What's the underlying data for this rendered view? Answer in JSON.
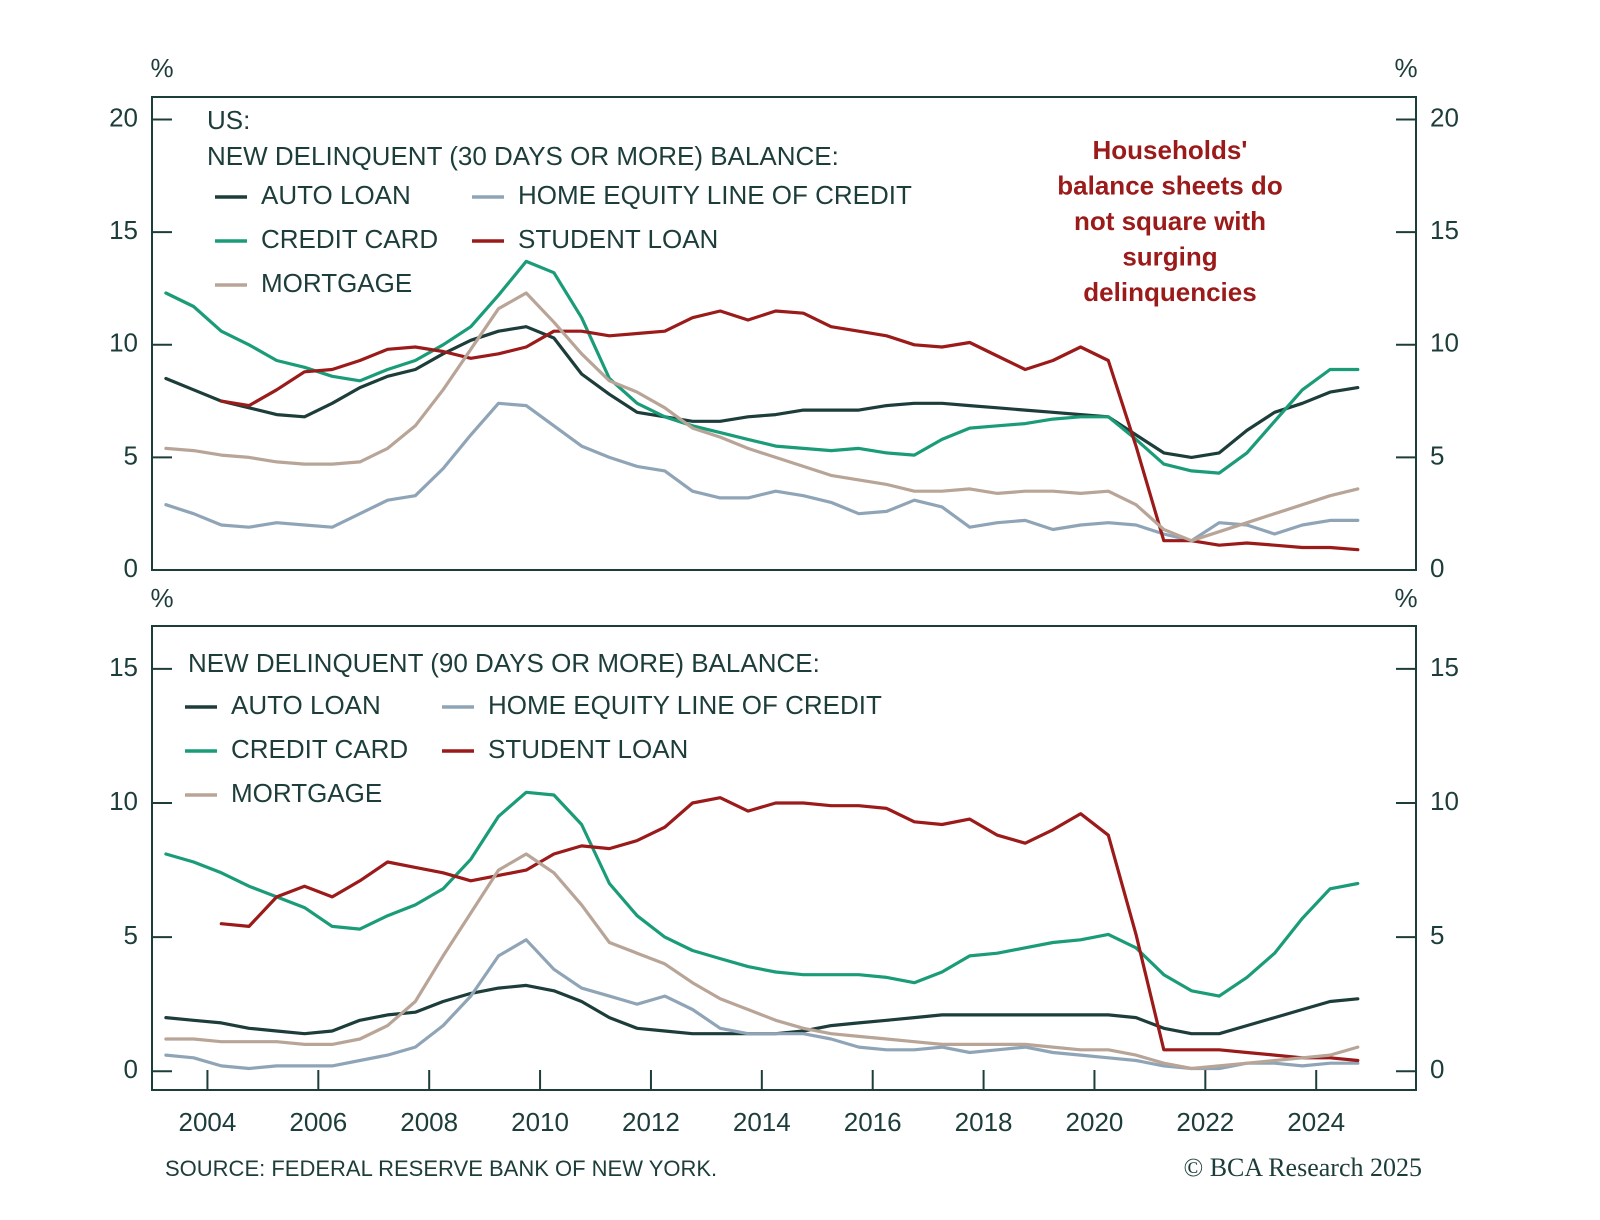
{
  "chart_data": [
    {
      "type": "line",
      "title": "US:",
      "subtitle": "NEW DELINQUENT (30 DAYS OR MORE) BALANCE:",
      "y_label": "%",
      "y2_label": "%",
      "annotation": [
        "Households'",
        "balance sheets do",
        "not square with",
        "surging",
        "delinquencies"
      ],
      "xlim": [
        2003,
        2025.8
      ],
      "ylim": [
        0,
        21
      ],
      "yticks": [
        0,
        5,
        10,
        15,
        20
      ],
      "y2lim": [
        0,
        21
      ],
      "y2ticks": [
        0,
        5,
        10,
        15,
        20
      ],
      "x": [
        2003.25,
        2003.75,
        2004.25,
        2004.75,
        2005.25,
        2005.75,
        2006.25,
        2006.75,
        2007.25,
        2007.75,
        2008.25,
        2008.75,
        2009.25,
        2009.75,
        2010.25,
        2010.75,
        2011.25,
        2011.75,
        2012.25,
        2012.75,
        2013.25,
        2013.75,
        2014.25,
        2014.75,
        2015.25,
        2015.75,
        2016.25,
        2016.75,
        2017.25,
        2017.75,
        2018.25,
        2018.75,
        2019.25,
        2019.75,
        2020.25,
        2020.75,
        2021.25,
        2021.75,
        2022.25,
        2022.75,
        2023.25,
        2023.75,
        2024.25,
        2024.75
      ],
      "series": [
        {
          "name": "AUTO LOAN",
          "color": "#1d3d3a",
          "values": [
            8.5,
            8.0,
            7.5,
            7.2,
            6.9,
            6.8,
            7.4,
            8.1,
            8.6,
            8.9,
            9.6,
            10.2,
            10.6,
            10.8,
            10.3,
            8.7,
            7.8,
            7.0,
            6.8,
            6.6,
            6.6,
            6.8,
            6.9,
            7.1,
            7.1,
            7.1,
            7.3,
            7.4,
            7.4,
            7.3,
            7.2,
            7.1,
            7.0,
            6.9,
            6.8,
            6.0,
            5.2,
            5.0,
            5.2,
            6.2,
            7.0,
            7.4,
            7.9,
            8.1
          ]
        },
        {
          "name": "HOME EQUITY LINE OF CREDIT",
          "color": "#8fa5b7",
          "values": [
            2.9,
            2.5,
            2.0,
            1.9,
            2.1,
            2.0,
            1.9,
            2.5,
            3.1,
            3.3,
            4.5,
            6.0,
            7.4,
            7.3,
            6.4,
            5.5,
            5.0,
            4.6,
            4.4,
            3.5,
            3.2,
            3.2,
            3.5,
            3.3,
            3.0,
            2.5,
            2.6,
            3.1,
            2.8,
            1.9,
            2.1,
            2.2,
            1.8,
            2.0,
            2.1,
            2.0,
            1.6,
            1.3,
            2.1,
            2.0,
            1.6,
            2.0,
            2.2,
            2.2
          ]
        },
        {
          "name": "CREDIT CARD",
          "color": "#1a9c78",
          "values": [
            12.3,
            11.7,
            10.6,
            10.0,
            9.3,
            9.0,
            8.6,
            8.4,
            8.9,
            9.3,
            10.0,
            10.8,
            12.2,
            13.7,
            13.2,
            11.2,
            8.5,
            7.4,
            6.8,
            6.4,
            6.1,
            5.8,
            5.5,
            5.4,
            5.3,
            5.4,
            5.2,
            5.1,
            5.8,
            6.3,
            6.4,
            6.5,
            6.7,
            6.8,
            6.8,
            5.8,
            4.7,
            4.4,
            4.3,
            5.2,
            6.6,
            8.0,
            8.9,
            8.9
          ]
        },
        {
          "name": "STUDENT LOAN",
          "color": "#9b1a1a",
          "values": [
            null,
            null,
            7.5,
            7.3,
            8.0,
            8.8,
            8.9,
            9.3,
            9.8,
            9.9,
            9.7,
            9.4,
            9.6,
            9.9,
            10.6,
            10.6,
            10.4,
            10.5,
            10.6,
            11.2,
            11.5,
            11.1,
            11.5,
            11.4,
            10.8,
            10.6,
            10.4,
            10.0,
            9.9,
            10.1,
            9.5,
            8.9,
            9.3,
            9.9,
            9.3,
            5.5,
            1.3,
            1.3,
            1.1,
            1.2,
            1.1,
            1.0,
            1.0,
            0.9
          ]
        },
        {
          "name": "MORTGAGE",
          "color": "#b8a597",
          "values": [
            5.4,
            5.3,
            5.1,
            5.0,
            4.8,
            4.7,
            4.7,
            4.8,
            5.4,
            6.4,
            8.0,
            9.8,
            11.6,
            12.3,
            11.0,
            9.6,
            8.4,
            7.9,
            7.2,
            6.3,
            5.9,
            5.4,
            5.0,
            4.6,
            4.2,
            4.0,
            3.8,
            3.5,
            3.5,
            3.6,
            3.4,
            3.5,
            3.5,
            3.4,
            3.5,
            2.9,
            1.8,
            1.3,
            1.7,
            2.1,
            2.5,
            2.9,
            3.3,
            3.6
          ]
        }
      ]
    },
    {
      "type": "line",
      "subtitle": "NEW DELINQUENT (90 DAYS OR MORE) BALANCE:",
      "y_label": "%",
      "y2_label": "%",
      "xlim": [
        2003,
        2025.8
      ],
      "xticks": [
        2004,
        2006,
        2008,
        2010,
        2012,
        2014,
        2016,
        2018,
        2020,
        2022,
        2024
      ],
      "ylim": [
        -0.7,
        16.6
      ],
      "yticks": [
        0,
        5,
        10,
        15
      ],
      "y2lim": [
        -0.7,
        16.6
      ],
      "y2ticks": [
        0,
        5,
        10,
        15
      ],
      "x": [
        2003.25,
        2003.75,
        2004.25,
        2004.75,
        2005.25,
        2005.75,
        2006.25,
        2006.75,
        2007.25,
        2007.75,
        2008.25,
        2008.75,
        2009.25,
        2009.75,
        2010.25,
        2010.75,
        2011.25,
        2011.75,
        2012.25,
        2012.75,
        2013.25,
        2013.75,
        2014.25,
        2014.75,
        2015.25,
        2015.75,
        2016.25,
        2016.75,
        2017.25,
        2017.75,
        2018.25,
        2018.75,
        2019.25,
        2019.75,
        2020.25,
        2020.75,
        2021.25,
        2021.75,
        2022.25,
        2022.75,
        2023.25,
        2023.75,
        2024.25,
        2024.75
      ],
      "series": [
        {
          "name": "AUTO LOAN",
          "color": "#1d3d3a",
          "values": [
            2.0,
            1.9,
            1.8,
            1.6,
            1.5,
            1.4,
            1.5,
            1.9,
            2.1,
            2.2,
            2.6,
            2.9,
            3.1,
            3.2,
            3.0,
            2.6,
            2.0,
            1.6,
            1.5,
            1.4,
            1.4,
            1.4,
            1.4,
            1.5,
            1.7,
            1.8,
            1.9,
            2.0,
            2.1,
            2.1,
            2.1,
            2.1,
            2.1,
            2.1,
            2.1,
            2.0,
            1.6,
            1.4,
            1.4,
            1.7,
            2.0,
            2.3,
            2.6,
            2.7
          ]
        },
        {
          "name": "HOME EQUITY LINE OF CREDIT",
          "color": "#8fa5b7",
          "values": [
            0.6,
            0.5,
            0.2,
            0.1,
            0.2,
            0.2,
            0.2,
            0.4,
            0.6,
            0.9,
            1.7,
            2.8,
            4.3,
            4.9,
            3.8,
            3.1,
            2.8,
            2.5,
            2.8,
            2.3,
            1.6,
            1.4,
            1.4,
            1.4,
            1.2,
            0.9,
            0.8,
            0.8,
            0.9,
            0.7,
            0.8,
            0.9,
            0.7,
            0.6,
            0.5,
            0.4,
            0.2,
            0.1,
            0.1,
            0.3,
            0.3,
            0.2,
            0.3,
            0.3
          ]
        },
        {
          "name": "CREDIT CARD",
          "color": "#1a9c78",
          "values": [
            8.1,
            7.8,
            7.4,
            6.9,
            6.5,
            6.1,
            5.4,
            5.3,
            5.8,
            6.2,
            6.8,
            7.9,
            9.5,
            10.4,
            10.3,
            9.2,
            7.0,
            5.8,
            5.0,
            4.5,
            4.2,
            3.9,
            3.7,
            3.6,
            3.6,
            3.6,
            3.5,
            3.3,
            3.7,
            4.3,
            4.4,
            4.6,
            4.8,
            4.9,
            5.1,
            4.6,
            3.6,
            3.0,
            2.8,
            3.5,
            4.4,
            5.7,
            6.8,
            7.0
          ]
        },
        {
          "name": "STUDENT LOAN",
          "color": "#9b1a1a",
          "values": [
            null,
            null,
            5.5,
            5.4,
            6.5,
            6.9,
            6.5,
            7.1,
            7.8,
            7.6,
            7.4,
            7.1,
            7.3,
            7.5,
            8.1,
            8.4,
            8.3,
            8.6,
            9.1,
            10.0,
            10.2,
            9.7,
            10.0,
            10.0,
            9.9,
            9.9,
            9.8,
            9.3,
            9.2,
            9.4,
            8.8,
            8.5,
            9.0,
            9.6,
            8.8,
            5.1,
            0.8,
            0.8,
            0.8,
            0.7,
            0.6,
            0.5,
            0.5,
            0.4
          ]
        },
        {
          "name": "MORTGAGE",
          "color": "#b8a597",
          "values": [
            1.2,
            1.2,
            1.1,
            1.1,
            1.1,
            1.0,
            1.0,
            1.2,
            1.7,
            2.6,
            4.3,
            5.9,
            7.5,
            8.1,
            7.4,
            6.2,
            4.8,
            4.4,
            4.0,
            3.3,
            2.7,
            2.3,
            1.9,
            1.6,
            1.4,
            1.3,
            1.2,
            1.1,
            1.0,
            1.0,
            1.0,
            1.0,
            0.9,
            0.8,
            0.8,
            0.6,
            0.3,
            0.1,
            0.2,
            0.3,
            0.4,
            0.5,
            0.6,
            0.9
          ]
        }
      ]
    }
  ],
  "source": "SOURCE: FEDERAL RESERVE BANK OF NEW YORK.",
  "credit": "© BCA Research 2025"
}
